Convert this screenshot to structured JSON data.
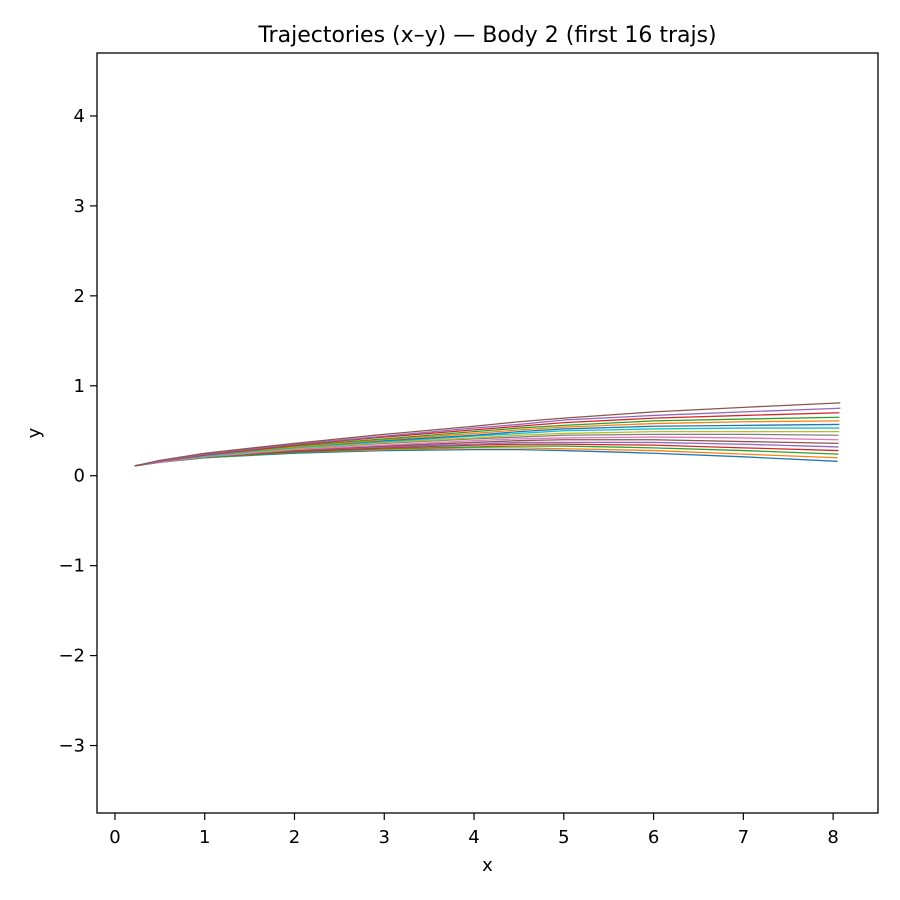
{
  "chart_data": {
    "type": "line",
    "title": "Trajectories (x–y) — Body 2 (first 16 trajs)",
    "xlabel": "x",
    "ylabel": "y",
    "xlim": [
      -0.2,
      8.5
    ],
    "ylim": [
      -3.75,
      4.7
    ],
    "xticks": [
      0,
      1,
      2,
      3,
      4,
      5,
      6,
      7,
      8
    ],
    "yticks": [
      -3,
      -2,
      -1,
      0,
      1,
      2,
      3,
      4
    ],
    "xtick_labels": [
      "0",
      "1",
      "2",
      "3",
      "4",
      "5",
      "6",
      "7",
      "8"
    ],
    "ytick_labels": [
      "−3",
      "−2",
      "−1",
      "0",
      "1",
      "2",
      "3",
      "4"
    ],
    "grid": false,
    "legend": "none",
    "series": [
      {
        "color": "#1f77b4",
        "x": [
          0.22,
          0.5,
          1,
          2,
          3,
          4,
          4.5,
          5,
          6,
          7,
          8.05
        ],
        "y": [
          0.11,
          0.15,
          0.2,
          0.25,
          0.28,
          0.29,
          0.29,
          0.28,
          0.25,
          0.21,
          0.16
        ]
      },
      {
        "color": "#ff7f0e",
        "x": [
          0.22,
          0.5,
          1,
          2,
          3,
          4,
          4.5,
          5,
          6,
          7,
          8.05
        ],
        "y": [
          0.11,
          0.15,
          0.2,
          0.26,
          0.29,
          0.31,
          0.31,
          0.3,
          0.28,
          0.24,
          0.2
        ]
      },
      {
        "color": "#2ca02c",
        "x": [
          0.22,
          0.5,
          1,
          2,
          3,
          4,
          4.5,
          5,
          6,
          7,
          8.06
        ],
        "y": [
          0.11,
          0.15,
          0.2,
          0.26,
          0.3,
          0.32,
          0.33,
          0.33,
          0.31,
          0.28,
          0.24
        ]
      },
      {
        "color": "#d62728",
        "x": [
          0.22,
          0.5,
          1,
          2,
          3,
          4,
          4.5,
          5,
          6,
          7,
          8.06
        ],
        "y": [
          0.11,
          0.15,
          0.21,
          0.27,
          0.31,
          0.34,
          0.35,
          0.35,
          0.34,
          0.31,
          0.28
        ]
      },
      {
        "color": "#9467bd",
        "x": [
          0.22,
          0.5,
          1,
          2,
          3,
          4,
          4.5,
          5,
          6,
          7,
          8.06
        ],
        "y": [
          0.11,
          0.15,
          0.21,
          0.28,
          0.32,
          0.35,
          0.37,
          0.37,
          0.37,
          0.35,
          0.32
        ]
      },
      {
        "color": "#8c564b",
        "x": [
          0.22,
          0.5,
          1,
          2,
          3,
          4,
          4.5,
          5,
          6,
          7,
          8.06
        ],
        "y": [
          0.11,
          0.15,
          0.21,
          0.28,
          0.33,
          0.37,
          0.39,
          0.4,
          0.4,
          0.38,
          0.36
        ]
      },
      {
        "color": "#e377c2",
        "x": [
          0.22,
          0.5,
          1,
          2,
          3,
          4,
          4.5,
          5,
          6,
          7,
          8.06
        ],
        "y": [
          0.11,
          0.15,
          0.21,
          0.29,
          0.34,
          0.39,
          0.41,
          0.42,
          0.43,
          0.42,
          0.4
        ]
      },
      {
        "color": "#7f7f7f",
        "x": [
          0.22,
          0.5,
          1,
          2,
          3,
          4,
          4.5,
          5,
          6,
          7,
          8.06
        ],
        "y": [
          0.11,
          0.16,
          0.22,
          0.3,
          0.36,
          0.41,
          0.43,
          0.45,
          0.46,
          0.46,
          0.45
        ]
      },
      {
        "color": "#bcbd22",
        "x": [
          0.22,
          0.5,
          1,
          2,
          3,
          4,
          4.5,
          5,
          6,
          7,
          8.07
        ],
        "y": [
          0.11,
          0.16,
          0.22,
          0.3,
          0.37,
          0.42,
          0.45,
          0.47,
          0.49,
          0.49,
          0.49
        ]
      },
      {
        "color": "#17becf",
        "x": [
          0.22,
          0.5,
          1,
          2,
          3,
          4,
          4.5,
          5,
          6,
          7,
          8.07
        ],
        "y": [
          0.11,
          0.16,
          0.22,
          0.31,
          0.38,
          0.44,
          0.47,
          0.5,
          0.52,
          0.53,
          0.53
        ]
      },
      {
        "color": "#1f77b4",
        "x": [
          0.22,
          0.5,
          1,
          2,
          3,
          4,
          4.5,
          5,
          6,
          7,
          8.07
        ],
        "y": [
          0.11,
          0.16,
          0.23,
          0.32,
          0.39,
          0.45,
          0.49,
          0.52,
          0.55,
          0.56,
          0.57
        ]
      },
      {
        "color": "#ff7f0e",
        "x": [
          0.22,
          0.5,
          1,
          2,
          3,
          4,
          4.5,
          5,
          6,
          7,
          8.07
        ],
        "y": [
          0.11,
          0.16,
          0.23,
          0.32,
          0.4,
          0.47,
          0.51,
          0.54,
          0.58,
          0.6,
          0.61
        ]
      },
      {
        "color": "#2ca02c",
        "x": [
          0.22,
          0.5,
          1,
          2,
          3,
          4,
          4.5,
          5,
          6,
          7,
          8.07
        ],
        "y": [
          0.11,
          0.16,
          0.23,
          0.33,
          0.41,
          0.49,
          0.53,
          0.56,
          0.61,
          0.63,
          0.65
        ]
      },
      {
        "color": "#d62728",
        "x": [
          0.22,
          0.5,
          1,
          2,
          3,
          4,
          4.5,
          5,
          6,
          7,
          8.07
        ],
        "y": [
          0.11,
          0.16,
          0.23,
          0.34,
          0.43,
          0.51,
          0.55,
          0.59,
          0.64,
          0.67,
          0.7
        ]
      },
      {
        "color": "#9467bd",
        "x": [
          0.22,
          0.5,
          1,
          2,
          3,
          4,
          4.5,
          5,
          6,
          7,
          8.08
        ],
        "y": [
          0.11,
          0.16,
          0.24,
          0.35,
          0.44,
          0.53,
          0.57,
          0.62,
          0.67,
          0.71,
          0.75
        ]
      },
      {
        "color": "#8c564b",
        "x": [
          0.22,
          0.5,
          1,
          2,
          3,
          4,
          4.5,
          5,
          6,
          7,
          8.08
        ],
        "y": [
          0.11,
          0.17,
          0.25,
          0.36,
          0.46,
          0.55,
          0.6,
          0.64,
          0.71,
          0.76,
          0.81
        ]
      }
    ]
  }
}
